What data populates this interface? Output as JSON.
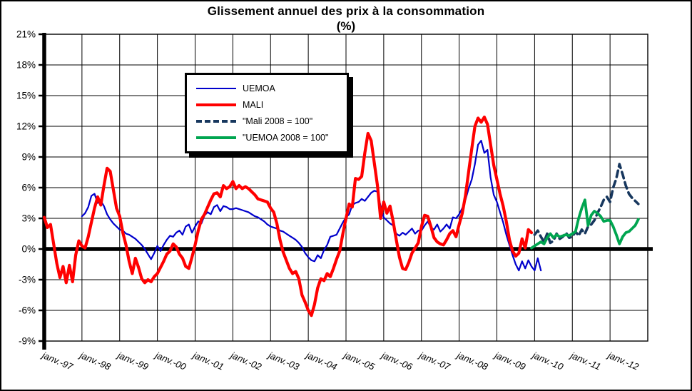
{
  "title": {
    "line1": "Glissement annuel des prix à la consommation",
    "line2": "(%)"
  },
  "legend": {
    "items": [
      {
        "label": "UEMOA"
      },
      {
        "label": "MALI"
      },
      {
        "label": "\"Mali 2008 = 100\""
      },
      {
        "label": "\"UEMOA 2008 = 100\""
      }
    ]
  },
  "colors": {
    "uemoa": "#0000CC",
    "mali": "#FF0000",
    "mali_new_base": "#17375E",
    "uemoa_new_base": "#00A550",
    "grid": "#000000",
    "axis": "#000000",
    "background": "#FFFFFF"
  },
  "chart_data": {
    "type": "line",
    "title": "Glissement annuel des prix à la consommation (%)",
    "xlabel": "",
    "ylabel": "",
    "grid": true,
    "legend_position": "upper-left-inside",
    "ylim": [
      -9,
      21
    ],
    "ytick_step": 3,
    "ytick_labels": [
      "21%",
      "18%",
      "15%",
      "12%",
      "9%",
      "6%",
      "3%",
      "0%",
      "-3%",
      "-6%",
      "-9%"
    ],
    "xtick_labels": [
      "janv.-97",
      "janv.-98",
      "janv.-99",
      "janv.-00",
      "janv.-01",
      "janv.-02",
      "janv.-03",
      "janv.-04",
      "janv.-05",
      "janv.-06",
      "janv.-07",
      "janv.-08",
      "janv.-09",
      "janv.-10",
      "janv.-11",
      "janv.-12"
    ],
    "x_years_span": 16,
    "x_start_year": 1997,
    "series": [
      {
        "name": "UEMOA",
        "color": "#0000CC",
        "dash": false,
        "width": 2.2,
        "start_year": 1998,
        "start_month": 1,
        "monthly_values": [
          3.2,
          3.5,
          4.1,
          5.2,
          5.4,
          4.5,
          4.7,
          4.2,
          3.4,
          2.9,
          2.5,
          2.2,
          1.9,
          1.8,
          1.5,
          1.4,
          1.2,
          1.0,
          0.7,
          0.4,
          0.0,
          -0.5,
          -1.0,
          -0.4,
          0.3,
          -0.2,
          0.4,
          0.9,
          1.3,
          1.2,
          1.6,
          1.8,
          1.4,
          2.2,
          2.4,
          1.6,
          2.2,
          2.7,
          2.5,
          3.3,
          3.6,
          3.4,
          4.1,
          4.3,
          3.7,
          4.2,
          4.1,
          3.9,
          3.9,
          4.0,
          3.9,
          3.8,
          3.7,
          3.6,
          3.4,
          3.2,
          3.1,
          2.9,
          2.7,
          2.4,
          2.2,
          2.1,
          2.0,
          1.8,
          1.7,
          1.5,
          1.3,
          1.1,
          0.9,
          0.6,
          0.2,
          -0.4,
          -0.8,
          -1.1,
          -1.2,
          -0.6,
          -0.9,
          -0.1,
          0.4,
          1.2,
          1.3,
          1.4,
          2.0,
          2.6,
          3.1,
          3.4,
          4.3,
          4.5,
          4.6,
          4.9,
          4.7,
          5.1,
          5.5,
          5.7,
          5.6,
          4.2,
          3.1,
          2.8,
          2.5,
          2.3,
          1.5,
          1.3,
          1.6,
          1.4,
          1.7,
          2.0,
          1.5,
          1.8,
          1.8,
          2.3,
          2.7,
          2.1,
          1.9,
          2.4,
          1.7,
          2.0,
          2.4,
          2.0,
          3.1,
          3.0,
          3.4,
          4.0,
          4.8,
          5.9,
          6.8,
          8.3,
          10.2,
          10.6,
          9.4,
          9.7,
          7.0,
          5.3,
          4.6,
          3.6,
          2.6,
          1.4,
          0.4,
          -0.6,
          -1.5,
          -2.1,
          -1.2,
          -1.9,
          -1.1,
          -1.7,
          -2.1,
          -0.9,
          -2.1
        ]
      },
      {
        "name": "MALI",
        "color": "#FF0000",
        "dash": false,
        "width": 4.2,
        "start_year": 1997,
        "start_month": 1,
        "monthly_values": [
          3.1,
          2.1,
          2.4,
          0.5,
          -1.4,
          -2.8,
          -1.7,
          -3.3,
          -1.6,
          -3.2,
          -0.6,
          0.8,
          0.3,
          0.1,
          1.2,
          2.6,
          4.0,
          5.1,
          4.3,
          6.2,
          7.9,
          7.6,
          5.8,
          4.0,
          3.2,
          1.6,
          0.4,
          -1.2,
          -2.4,
          -0.9,
          -1.8,
          -2.9,
          -3.3,
          -3.0,
          -3.2,
          -2.7,
          -2.4,
          -1.8,
          -1.2,
          -0.5,
          -0.2,
          0.5,
          0.2,
          -0.5,
          -0.9,
          -1.7,
          -1.9,
          -0.8,
          0.4,
          1.8,
          2.9,
          3.4,
          4.1,
          4.8,
          5.4,
          5.5,
          5.1,
          6.2,
          5.9,
          6.1,
          6.6,
          5.9,
          6.2,
          5.9,
          6.1,
          5.9,
          5.6,
          5.3,
          4.9,
          4.8,
          4.7,
          4.6,
          4.0,
          3.6,
          2.5,
          0.9,
          -0.3,
          -1.1,
          -1.9,
          -2.4,
          -2.2,
          -2.9,
          -4.5,
          -5.2,
          -6.0,
          -6.5,
          -5.4,
          -3.8,
          -2.9,
          -3.1,
          -2.4,
          -2.7,
          -1.9,
          -1.0,
          -0.2,
          1.5,
          3.0,
          4.4,
          4.1,
          6.9,
          6.8,
          7.1,
          9.4,
          11.3,
          10.6,
          8.4,
          6.2,
          3.0,
          4.6,
          3.5,
          4.2,
          2.7,
          0.9,
          -0.8,
          -1.9,
          -2.0,
          -1.3,
          -0.4,
          0.1,
          0.6,
          2.2,
          3.3,
          3.2,
          2.2,
          1.1,
          0.7,
          0.5,
          0.4,
          0.9,
          1.5,
          1.8,
          1.2,
          2.4,
          3.5,
          5.2,
          7.5,
          9.8,
          12.0,
          12.8,
          12.4,
          12.9,
          12.2,
          10.2,
          8.2,
          6.8,
          5.4,
          4.2,
          2.7,
          0.9,
          -0.2,
          -0.7,
          -0.4,
          1.0,
          0.1,
          1.9,
          1.6
        ]
      },
      {
        "name": "Mali 2008 = 100",
        "color": "#17375E",
        "dash": true,
        "width": 3.6,
        "start_year": 2010,
        "start_month": 1,
        "monthly_values": [
          1.4,
          1.8,
          1.2,
          0.7,
          1.5,
          0.6,
          0.8,
          1.5,
          1.0,
          1.2,
          1.6,
          1.1,
          1.2,
          1.7,
          1.3,
          1.9,
          1.5,
          2.2,
          2.4,
          2.8,
          3.5,
          4.1,
          4.8,
          5.1,
          4.6,
          6.0,
          6.9,
          8.3,
          7.3,
          6.2,
          5.4,
          5.0,
          4.7,
          4.4
        ]
      },
      {
        "name": "UEMOA 2008 = 100",
        "color": "#00A550",
        "dash": false,
        "width": 3.8,
        "start_year": 2009,
        "start_month": 12,
        "monthly_values": [
          0.1,
          0.3,
          0.5,
          0.7,
          0.5,
          1.1,
          1.5,
          1.1,
          1.4,
          1.2,
          1.3,
          1.4,
          1.3,
          1.5,
          1.7,
          3.0,
          4.0,
          4.8,
          2.3,
          3.3,
          3.7,
          3.5,
          3.2,
          2.7,
          2.8,
          2.8,
          2.2,
          1.4,
          0.5,
          1.2,
          1.6,
          1.7,
          2.0,
          2.3,
          2.9
        ]
      }
    ]
  }
}
